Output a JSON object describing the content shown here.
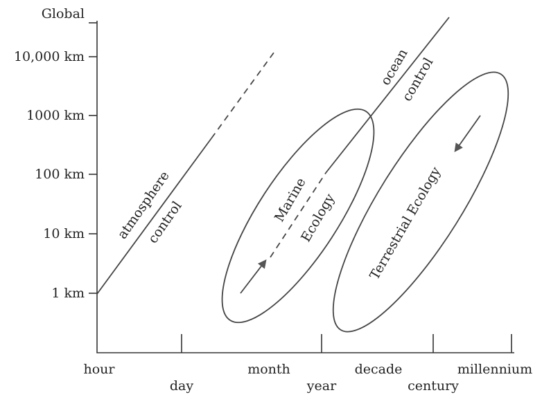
{
  "y_axis": {
    "labels": [
      "Global",
      "10,000 km",
      "1000 km",
      "100 km",
      "10 km",
      "1 km"
    ]
  },
  "x_axis": {
    "labels": [
      "hour",
      "day",
      "month",
      "year",
      "decade",
      "century",
      "millennium"
    ]
  },
  "regions": {
    "atmosphere": [
      "atmosphere",
      "control"
    ],
    "ocean": [
      "ocean",
      "control"
    ],
    "marine": [
      "Marine",
      "Ecology"
    ],
    "terrestrial": [
      "Terrestrial Ecology"
    ]
  }
}
